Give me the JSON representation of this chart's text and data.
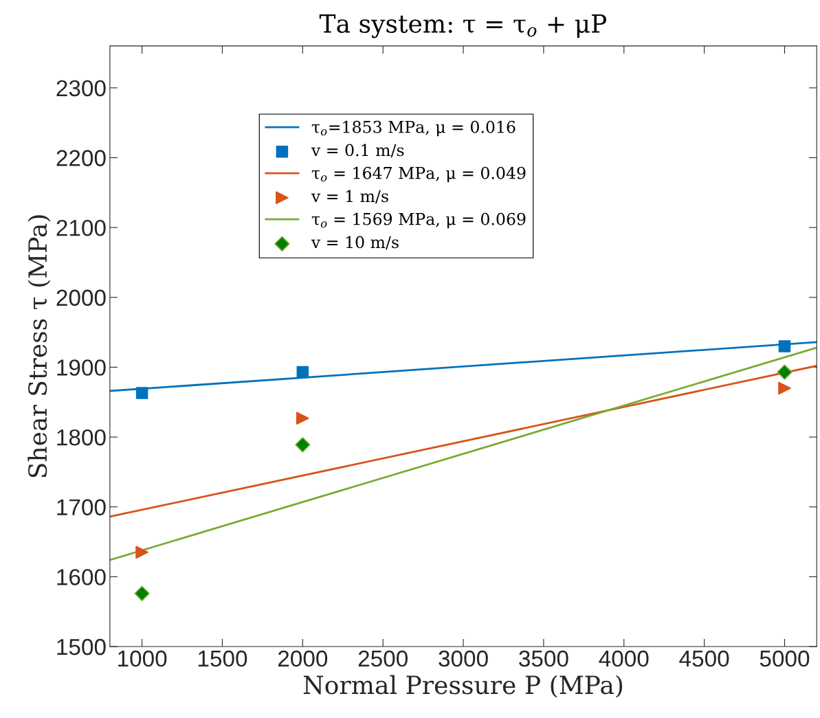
{
  "chart_data": {
    "type": "line",
    "title": "Ta system: τ = τ$_{o}$ + μP",
    "xlabel": "Normal Pressure P (MPa)",
    "ylabel": "Shear Stress τ (MPa)",
    "xlim": [
      800,
      5200
    ],
    "xticks": [
      1000,
      1500,
      2000,
      2500,
      3000,
      3500,
      4000,
      4500,
      5000
    ],
    "ylim": [
      1500,
      2360
    ],
    "yticks": [
      1500,
      1600,
      1700,
      1800,
      1900,
      2000,
      2100,
      2200,
      2300
    ],
    "grid": false,
    "legend": "top left",
    "series": [
      {
        "name": "τ$_{o}$=1853 MPa, μ = 0.016",
        "color": "#0072bd",
        "x": [
          800,
          5200
        ],
        "values": [
          1866,
          1936
        ]
      },
      {
        "name": "v = 0.1 m/s",
        "type": "scatter",
        "marker": "square",
        "color": "#0072bd",
        "x": [
          1000,
          2000,
          5000
        ],
        "values": [
          1863,
          1893,
          1930
        ]
      },
      {
        "name": "τ$_{o}$ = 1647 MPa, μ = 0.049",
        "color": "#d95319",
        "x": [
          800,
          5200
        ],
        "values": [
          1686,
          1902
        ]
      },
      {
        "name": "v = 1 m/s",
        "type": "scatter",
        "marker": "triangle",
        "color": "#d95319",
        "x": [
          1000,
          2000,
          5000
        ],
        "values": [
          1635,
          1827,
          1870
        ]
      },
      {
        "name": "τ$_{o}$ = 1569 MPa, μ = 0.069",
        "color": "#77ac30",
        "x": [
          800,
          5200
        ],
        "values": [
          1624,
          1928
        ]
      },
      {
        "name": "v = 10 m/s",
        "type": "scatter",
        "marker": "diamond",
        "color": "#008000",
        "x": [
          1000,
          2000,
          5000
        ],
        "values": [
          1576,
          1789,
          1893
        ]
      }
    ]
  }
}
